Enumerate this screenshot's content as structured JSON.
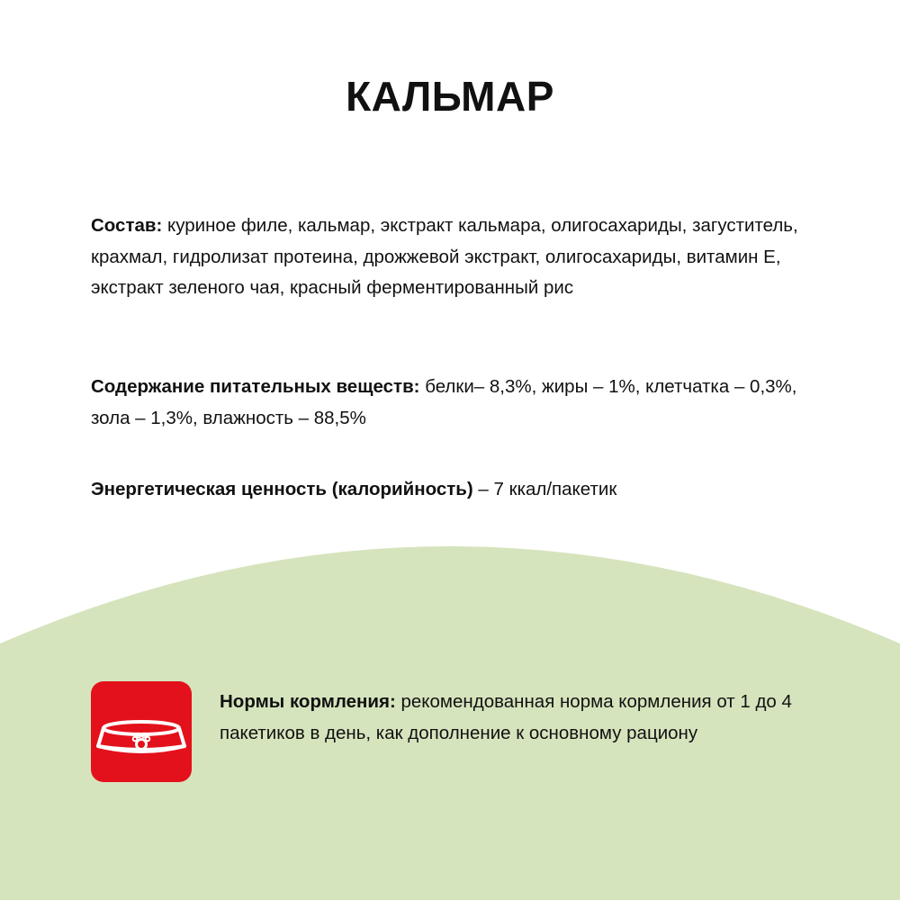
{
  "title": "КАЛЬМАР",
  "composition": {
    "label": "Состав:",
    "text": " куриное филе, кальмар, экстракт кальмара, олигосахариды, загуститель, крахмал, гидролизат протеина, дрожжевой экстракт, олигосахариды, витамин Е, экстракт зеленого чая, красный ферментированный рис"
  },
  "nutrients": {
    "label": "Содержание питательных веществ:",
    "text": " белки– 8,3%, жиры – 1%, клетчатка – 0,3%, зола – 1,3%, влажность – 88,5%"
  },
  "energy": {
    "label": "Энергетическая ценность (калорийность)",
    "text": " – 7 ккал/пакетик"
  },
  "feeding": {
    "label": "Нормы кормления:",
    "text": " рекомендованная норма кормления от 1 до 4 пакетиков в день, как дополнение к основному рациону",
    "icon": "pet-bowl-icon"
  },
  "colors": {
    "accent": "#e3111b",
    "background_arc": "#d6e4bd"
  }
}
